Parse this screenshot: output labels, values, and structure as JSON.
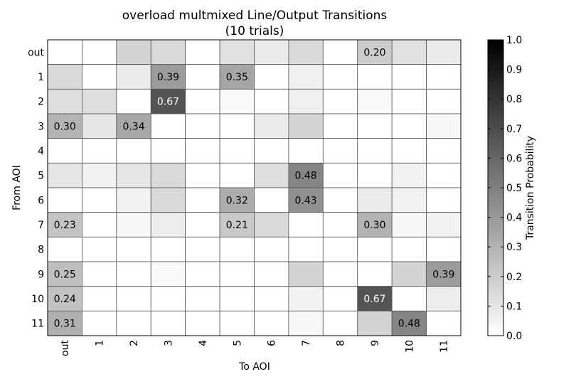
{
  "chart_data": {
    "type": "heatmap",
    "title": "overload multmixed Line/Output Transitions",
    "subtitle": "(10 trials)",
    "xlabel": "To AOI",
    "ylabel": "From AOI",
    "x_categories": [
      "out",
      "1",
      "2",
      "3",
      "4",
      "5",
      "6",
      "7",
      "8",
      "9",
      "10",
      "11"
    ],
    "y_categories": [
      "out",
      "1",
      "2",
      "3",
      "4",
      "5",
      "6",
      "7",
      "8",
      "9",
      "10",
      "11"
    ],
    "values": [
      [
        0.0,
        0.0,
        0.17,
        0.15,
        0.0,
        0.12,
        0.08,
        0.15,
        0.0,
        0.2,
        0.12,
        0.08
      ],
      [
        0.15,
        0.0,
        0.08,
        0.39,
        0.0,
        0.35,
        0.0,
        0.06,
        0.0,
        0.0,
        0.0,
        0.0
      ],
      [
        0.13,
        0.13,
        0.0,
        0.67,
        0.0,
        0.02,
        0.0,
        0.06,
        0.0,
        0.02,
        0.0,
        0.0
      ],
      [
        0.3,
        0.1,
        0.34,
        0.0,
        0.0,
        0.0,
        0.08,
        0.17,
        0.0,
        0.0,
        0.0,
        0.03
      ],
      [
        0.0,
        0.0,
        0.0,
        0.0,
        0.0,
        0.0,
        0.0,
        0.0,
        0.0,
        0.0,
        0.0,
        0.0
      ],
      [
        0.1,
        0.05,
        0.1,
        0.15,
        0.0,
        0.0,
        0.13,
        0.48,
        0.0,
        0.0,
        0.05,
        0.0
      ],
      [
        0.0,
        0.0,
        0.05,
        0.15,
        0.0,
        0.32,
        0.0,
        0.43,
        0.0,
        0.08,
        0.05,
        0.0
      ],
      [
        0.23,
        0.0,
        0.03,
        0.07,
        0.0,
        0.21,
        0.15,
        0.0,
        0.0,
        0.3,
        0.03,
        0.05
      ],
      [
        0.0,
        0.0,
        0.0,
        0.0,
        0.0,
        0.0,
        0.0,
        0.0,
        0.0,
        0.0,
        0.0,
        0.0
      ],
      [
        0.25,
        0.0,
        0.0,
        0.02,
        0.0,
        0.0,
        0.0,
        0.17,
        0.0,
        0.0,
        0.17,
        0.39
      ],
      [
        0.24,
        0.0,
        0.0,
        0.0,
        0.0,
        0.0,
        0.0,
        0.05,
        0.0,
        0.67,
        0.0,
        0.07
      ],
      [
        0.31,
        0.0,
        0.0,
        0.0,
        0.0,
        0.0,
        0.0,
        0.03,
        0.0,
        0.17,
        0.48,
        0.0
      ]
    ],
    "label_threshold": 0.2,
    "colormap": "Greys",
    "vmin": 0.0,
    "vmax": 1.0,
    "colorbar": {
      "label": "Transition Probability",
      "ticks": [
        "0.0",
        "0.1",
        "0.2",
        "0.3",
        "0.4",
        "0.5",
        "0.6",
        "0.7",
        "0.8",
        "0.9",
        "1.0"
      ]
    },
    "grid": true
  },
  "colors": {
    "low": "#ffffff",
    "high": "#000000",
    "gridline": "#555555",
    "text_dark": "#000000",
    "text_light": "#ffffff"
  }
}
